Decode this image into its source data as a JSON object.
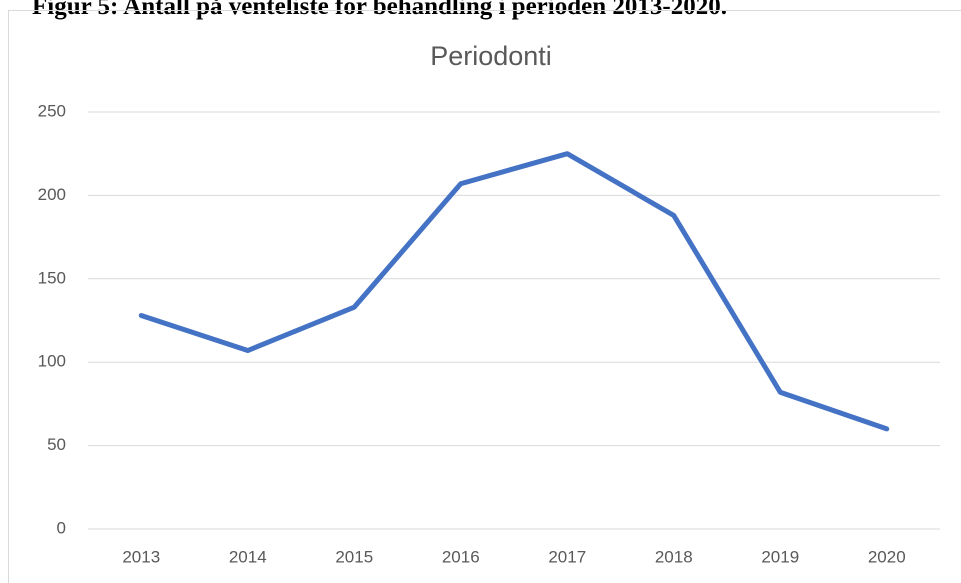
{
  "caption": "Figur 5: Antall på venteliste for behandling i perioden 2013-2020.",
  "chart_data": {
    "type": "line",
    "title": "Periodonti",
    "categories": [
      "2013",
      "2014",
      "2015",
      "2016",
      "2017",
      "2018",
      "2019",
      "2020"
    ],
    "series": [
      {
        "name": "Periodonti",
        "color": "#4472c4",
        "values": [
          128,
          107,
          133,
          207,
          225,
          188,
          82,
          60
        ]
      }
    ],
    "ylim": [
      0,
      250
    ],
    "yticks": [
      0,
      50,
      100,
      150,
      200,
      250
    ],
    "grid": true
  }
}
